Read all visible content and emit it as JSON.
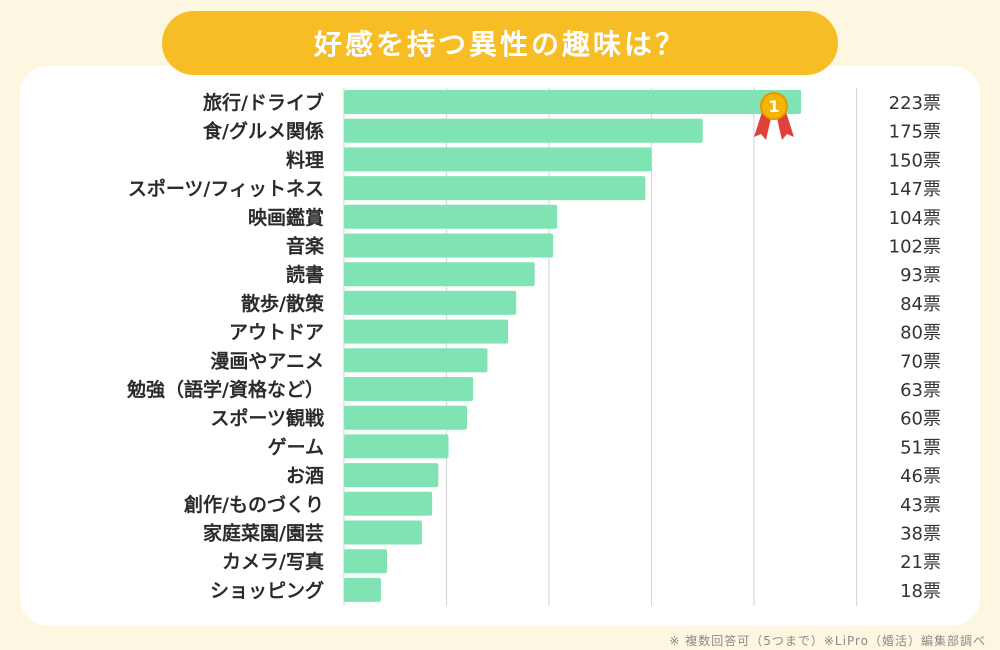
{
  "title": "好感を持つ異性の趣味は？",
  "footnote": "※ 複数回答可（5つまで）※LiPro（婚活）編集部調べ",
  "badge_rank": "1",
  "colors": {
    "bar": "#7fe3b4",
    "title_bg": "#f6bd24",
    "grid": "#d8d8d8",
    "badge": "#f5b400",
    "ribbon": "#e0413a"
  },
  "chart_data": {
    "type": "bar",
    "orientation": "horizontal",
    "title": "好感を持つ異性の趣味は？",
    "value_suffix": "票",
    "xlim": [
      0,
      250
    ],
    "grid": true,
    "categories": [
      "旅行/ドライブ",
      "食/グルメ関係",
      "料理",
      "スポーツ/フィットネス",
      "映画鑑賞",
      "音楽",
      "読書",
      "散歩/散策",
      "アウトドア",
      "漫画やアニメ",
      "勉強（語学/資格など）",
      "スポーツ観戦",
      "ゲーム",
      "お酒",
      "創作/ものづくり",
      "家庭菜園/園芸",
      "カメラ/写真",
      "ショッピング"
    ],
    "values": [
      223,
      175,
      150,
      147,
      104,
      102,
      93,
      84,
      80,
      70,
      63,
      60,
      51,
      46,
      43,
      38,
      21,
      18
    ],
    "value_labels": [
      "223票",
      "175票",
      "150票",
      "147票",
      "104票",
      "102票",
      "93票",
      "84票",
      "80票",
      "70票",
      "63票",
      "60票",
      "51票",
      "46票",
      "43票",
      "38票",
      "21票",
      "18票"
    ]
  }
}
